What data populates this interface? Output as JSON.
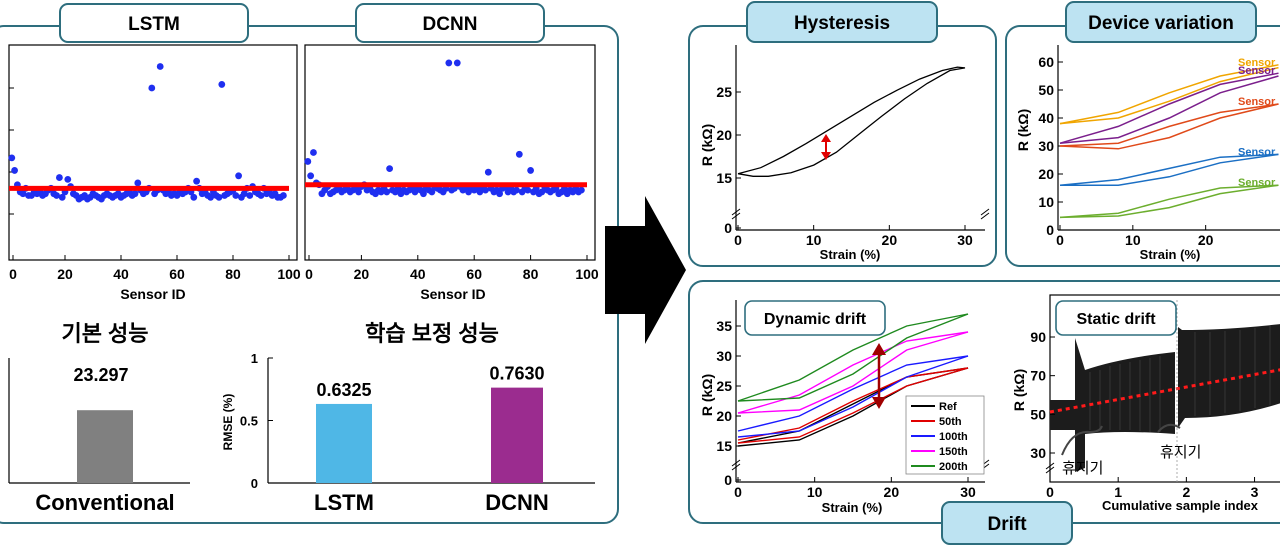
{
  "colors": {
    "panel_border": "#2e6e7e",
    "tab_fill": "#bde3f2",
    "scatter_dot": "#1f2ff0",
    "red_line": "#ff0000",
    "bar_conventional": "#808080",
    "bar_lstm": "#4fb7e6",
    "bar_dcnn": "#9b2c8f",
    "black": "#000000"
  },
  "left_panel": {
    "tabs": [
      "LSTM",
      "DCNN"
    ],
    "scatter_xlabel": "Sensor ID",
    "scatter_xticks": [
      "0",
      "20",
      "40",
      "60",
      "80",
      "100"
    ],
    "lstm_points": [
      [
        1,
        57
      ],
      [
        2,
        50
      ],
      [
        3,
        42
      ],
      [
        4,
        38
      ],
      [
        5,
        37
      ],
      [
        6,
        40
      ],
      [
        7,
        36
      ],
      [
        8,
        36
      ],
      [
        9,
        38
      ],
      [
        10,
        37
      ],
      [
        11,
        38
      ],
      [
        12,
        36
      ],
      [
        13,
        37
      ],
      [
        14,
        39
      ],
      [
        15,
        40
      ],
      [
        16,
        37
      ],
      [
        17,
        36
      ],
      [
        18,
        46
      ],
      [
        19,
        35
      ],
      [
        20,
        38
      ],
      [
        21,
        45
      ],
      [
        22,
        41
      ],
      [
        23,
        37
      ],
      [
        24,
        36
      ],
      [
        25,
        34
      ],
      [
        26,
        35
      ],
      [
        27,
        36
      ],
      [
        28,
        34
      ],
      [
        29,
        35
      ],
      [
        30,
        37
      ],
      [
        31,
        36
      ],
      [
        32,
        35
      ],
      [
        33,
        34
      ],
      [
        34,
        36
      ],
      [
        35,
        37
      ],
      [
        36,
        36
      ],
      [
        37,
        35
      ],
      [
        38,
        36
      ],
      [
        39,
        37
      ],
      [
        40,
        35
      ],
      [
        41,
        36
      ],
      [
        42,
        37
      ],
      [
        43,
        38
      ],
      [
        44,
        36
      ],
      [
        45,
        37
      ],
      [
        46,
        43
      ],
      [
        47,
        39
      ],
      [
        48,
        37
      ],
      [
        49,
        38
      ],
      [
        50,
        40
      ],
      [
        51,
        96
      ],
      [
        52,
        37
      ],
      [
        53,
        39
      ],
      [
        54,
        108
      ],
      [
        55,
        39
      ],
      [
        56,
        37
      ],
      [
        57,
        38
      ],
      [
        58,
        36
      ],
      [
        59,
        37
      ],
      [
        60,
        36
      ],
      [
        61,
        38
      ],
      [
        62,
        37
      ],
      [
        63,
        38
      ],
      [
        64,
        40
      ],
      [
        65,
        38
      ],
      [
        66,
        35
      ],
      [
        67,
        44
      ],
      [
        68,
        40
      ],
      [
        69,
        37
      ],
      [
        70,
        38
      ],
      [
        71,
        36
      ],
      [
        72,
        35
      ],
      [
        73,
        38
      ],
      [
        74,
        36
      ],
      [
        75,
        35
      ],
      [
        76,
        98
      ],
      [
        77,
        36
      ],
      [
        78,
        37
      ],
      [
        79,
        38
      ],
      [
        80,
        39
      ],
      [
        81,
        36
      ],
      [
        82,
        47
      ],
      [
        83,
        35
      ],
      [
        84,
        37
      ],
      [
        85,
        40
      ],
      [
        86,
        36
      ],
      [
        87,
        41
      ],
      [
        88,
        38
      ],
      [
        89,
        37
      ],
      [
        90,
        36
      ],
      [
        91,
        40
      ],
      [
        92,
        37
      ],
      [
        93,
        39
      ],
      [
        94,
        36
      ],
      [
        95,
        37
      ],
      [
        96,
        35
      ],
      [
        97,
        35
      ],
      [
        98,
        36
      ]
    ],
    "lstm_line_y": 40,
    "dcnn_points": [
      [
        1,
        55
      ],
      [
        2,
        47
      ],
      [
        3,
        60
      ],
      [
        4,
        43
      ],
      [
        5,
        42
      ],
      [
        6,
        37
      ],
      [
        7,
        39
      ],
      [
        8,
        41
      ],
      [
        9,
        37
      ],
      [
        10,
        38
      ],
      [
        11,
        39
      ],
      [
        12,
        40
      ],
      [
        13,
        38
      ],
      [
        14,
        39
      ],
      [
        15,
        40
      ],
      [
        16,
        38
      ],
      [
        17,
        39
      ],
      [
        18,
        40
      ],
      [
        19,
        38
      ],
      [
        20,
        41
      ],
      [
        21,
        42
      ],
      [
        22,
        39
      ],
      [
        23,
        40
      ],
      [
        24,
        38
      ],
      [
        25,
        37
      ],
      [
        26,
        39
      ],
      [
        27,
        38
      ],
      [
        28,
        40
      ],
      [
        29,
        38
      ],
      [
        30,
        51
      ],
      [
        31,
        39
      ],
      [
        32,
        38
      ],
      [
        33,
        40
      ],
      [
        34,
        37
      ],
      [
        35,
        39
      ],
      [
        36,
        38
      ],
      [
        37,
        39
      ],
      [
        38,
        40
      ],
      [
        39,
        38
      ],
      [
        40,
        41
      ],
      [
        41,
        39
      ],
      [
        42,
        37
      ],
      [
        43,
        40
      ],
      [
        44,
        39
      ],
      [
        45,
        38
      ],
      [
        46,
        41
      ],
      [
        47,
        40
      ],
      [
        48,
        39
      ],
      [
        49,
        38
      ],
      [
        50,
        40
      ],
      [
        51,
        110
      ],
      [
        52,
        39
      ],
      [
        53,
        40
      ],
      [
        54,
        110
      ],
      [
        55,
        41
      ],
      [
        56,
        39
      ],
      [
        57,
        40
      ],
      [
        58,
        38
      ],
      [
        59,
        40
      ],
      [
        60,
        39
      ],
      [
        61,
        41
      ],
      [
        62,
        38
      ],
      [
        63,
        40
      ],
      [
        64,
        39
      ],
      [
        65,
        49
      ],
      [
        66,
        40
      ],
      [
        67,
        38
      ],
      [
        68,
        39
      ],
      [
        69,
        37
      ],
      [
        70,
        40
      ],
      [
        71,
        41
      ],
      [
        72,
        38
      ],
      [
        73,
        40
      ],
      [
        74,
        38
      ],
      [
        75,
        39
      ],
      [
        76,
        59
      ],
      [
        77,
        38
      ],
      [
        78,
        40
      ],
      [
        79,
        39
      ],
      [
        80,
        50
      ],
      [
        81,
        38
      ],
      [
        82,
        40
      ],
      [
        83,
        37
      ],
      [
        84,
        38
      ],
      [
        85,
        41
      ],
      [
        86,
        39
      ],
      [
        87,
        38
      ],
      [
        88,
        39
      ],
      [
        89,
        40
      ],
      [
        90,
        37
      ],
      [
        91,
        38
      ],
      [
        92,
        40
      ],
      [
        93,
        37
      ],
      [
        94,
        39
      ],
      [
        95,
        38
      ],
      [
        96,
        40
      ],
      [
        97,
        38
      ],
      [
        98,
        39
      ]
    ],
    "dcnn_line_y": 42,
    "headings": {
      "basic": "기본 성능",
      "corrected": "학습 보정 성능"
    },
    "bar_left": {
      "category": "Conventional",
      "value": 23.297,
      "label": "23.297",
      "ylim": [
        0,
        40
      ]
    },
    "bar_right": {
      "ylabel": "RMSE (%)",
      "yticks": [
        "0",
        "0.5",
        "1"
      ],
      "ylim": [
        0,
        1
      ],
      "categories": [
        "LSTM",
        "DCNN"
      ],
      "values": [
        0.6325,
        0.763
      ],
      "labels": [
        "0.6325",
        "0.7630"
      ]
    }
  },
  "hysteresis": {
    "tab": "Hysteresis",
    "ylabel": "R (kΩ)",
    "xlabel": "Strain (%)",
    "xticks": [
      "0",
      "10",
      "20",
      "30"
    ],
    "yticks": [
      "0",
      "15",
      "20",
      "25"
    ],
    "loading": [
      [
        0,
        15.5
      ],
      [
        3,
        16.2
      ],
      [
        6,
        17.5
      ],
      [
        9,
        19.0
      ],
      [
        12,
        20.6
      ],
      [
        15,
        22.2
      ],
      [
        18,
        23.8
      ],
      [
        21,
        25.2
      ],
      [
        24,
        26.5
      ],
      [
        27,
        27.5
      ],
      [
        29,
        27.9
      ],
      [
        30,
        27.8
      ]
    ],
    "unloading": [
      [
        30,
        27.8
      ],
      [
        28,
        27.5
      ],
      [
        25,
        26.0
      ],
      [
        22,
        24.2
      ],
      [
        19,
        22.2
      ],
      [
        16,
        20.1
      ],
      [
        13,
        18.0
      ],
      [
        10,
        16.5
      ],
      [
        7,
        15.6
      ],
      [
        4,
        15.2
      ],
      [
        2,
        15.2
      ],
      [
        0,
        15.5
      ]
    ]
  },
  "device_variation": {
    "tab": "Device variation",
    "ylabel": "R (kΩ)",
    "xlabel": "Strain (%)",
    "xticks": [
      "0",
      "10",
      "20"
    ],
    "yticks": [
      "0",
      "10",
      "20",
      "30",
      "40",
      "50",
      "60"
    ],
    "series": [
      {
        "label": "Sensor",
        "color": "#f0a500",
        "lower": [
          [
            0,
            38
          ],
          [
            8,
            40
          ],
          [
            15,
            46
          ],
          [
            22,
            53
          ],
          [
            30,
            58
          ]
        ],
        "upper": [
          [
            0,
            38
          ],
          [
            8,
            42
          ],
          [
            15,
            49
          ],
          [
            22,
            55
          ],
          [
            30,
            59
          ]
        ]
      },
      {
        "label": "Sensor",
        "color": "#7b1f8c",
        "lower": [
          [
            0,
            31
          ],
          [
            8,
            33
          ],
          [
            15,
            40
          ],
          [
            22,
            49
          ],
          [
            30,
            55
          ]
        ],
        "upper": [
          [
            0,
            31
          ],
          [
            8,
            37
          ],
          [
            15,
            45
          ],
          [
            22,
            52
          ],
          [
            30,
            56
          ]
        ]
      },
      {
        "label": "Sensor",
        "color": "#e04a1a",
        "lower": [
          [
            0,
            30
          ],
          [
            8,
            29
          ],
          [
            15,
            33
          ],
          [
            22,
            40
          ],
          [
            30,
            45
          ]
        ],
        "upper": [
          [
            0,
            30
          ],
          [
            8,
            31
          ],
          [
            15,
            37
          ],
          [
            22,
            42
          ],
          [
            30,
            45
          ]
        ]
      },
      {
        "label": "Sensor",
        "color": "#1b6fc4",
        "lower": [
          [
            0,
            16
          ],
          [
            8,
            16
          ],
          [
            15,
            19
          ],
          [
            22,
            24
          ],
          [
            30,
            27
          ]
        ],
        "upper": [
          [
            0,
            16
          ],
          [
            8,
            18
          ],
          [
            15,
            22
          ],
          [
            22,
            26
          ],
          [
            30,
            27
          ]
        ]
      },
      {
        "label": "Sensor",
        "color": "#6cae2e",
        "lower": [
          [
            0,
            4.5
          ],
          [
            8,
            5
          ],
          [
            15,
            8
          ],
          [
            22,
            13
          ],
          [
            30,
            16
          ]
        ],
        "upper": [
          [
            0,
            4.5
          ],
          [
            8,
            6
          ],
          [
            15,
            11
          ],
          [
            22,
            15
          ],
          [
            30,
            16
          ]
        ]
      }
    ]
  },
  "dynamic_drift": {
    "label": "Dynamic drift",
    "ylabel": "R (kΩ)",
    "xlabel": "Strain (%)",
    "xticks": [
      "0",
      "10",
      "20",
      "30"
    ],
    "yticks": [
      "0",
      "15",
      "20",
      "25",
      "30",
      "35"
    ],
    "legend": [
      "Ref",
      "50th",
      "100th",
      "150th",
      "200th"
    ],
    "series": [
      {
        "name": "Ref",
        "color": "#000000",
        "lower": [
          [
            0,
            15
          ],
          [
            8,
            16
          ],
          [
            15,
            20
          ],
          [
            22,
            25
          ],
          [
            30,
            28
          ]
        ],
        "upper": [
          [
            0,
            15.5
          ],
          [
            8,
            17.5
          ],
          [
            15,
            22
          ],
          [
            22,
            26.5
          ],
          [
            30,
            28
          ]
        ]
      },
      {
        "name": "50th",
        "color": "#e00000",
        "lower": [
          [
            0,
            15.5
          ],
          [
            8,
            16.5
          ],
          [
            15,
            20.5
          ],
          [
            22,
            25
          ],
          [
            30,
            28
          ]
        ],
        "upper": [
          [
            0,
            16
          ],
          [
            8,
            18
          ],
          [
            15,
            22.5
          ],
          [
            22,
            26.5
          ],
          [
            30,
            28
          ]
        ]
      },
      {
        "name": "100th",
        "color": "#1a1aff",
        "lower": [
          [
            0,
            16.5
          ],
          [
            8,
            17.5
          ],
          [
            15,
            21.5
          ],
          [
            22,
            26.5
          ],
          [
            30,
            30
          ]
        ],
        "upper": [
          [
            0,
            17.5
          ],
          [
            8,
            20
          ],
          [
            15,
            24.5
          ],
          [
            22,
            28.5
          ],
          [
            30,
            30
          ]
        ]
      },
      {
        "name": "150th",
        "color": "#ff00ff",
        "lower": [
          [
            0,
            20.5
          ],
          [
            8,
            21
          ],
          [
            15,
            25
          ],
          [
            22,
            31
          ],
          [
            30,
            34
          ]
        ],
        "upper": [
          [
            0,
            20.5
          ],
          [
            8,
            23.5
          ],
          [
            15,
            28.5
          ],
          [
            22,
            32.5
          ],
          [
            30,
            34
          ]
        ]
      },
      {
        "name": "200th",
        "color": "#1f8a1f",
        "lower": [
          [
            0,
            22.5
          ],
          [
            8,
            23
          ],
          [
            15,
            27
          ],
          [
            22,
            33
          ],
          [
            30,
            37
          ]
        ],
        "upper": [
          [
            0,
            22.5
          ],
          [
            8,
            26
          ],
          [
            15,
            31
          ],
          [
            22,
            35
          ],
          [
            30,
            37
          ]
        ]
      }
    ]
  },
  "static_drift": {
    "label": "Static drift",
    "ylabel": "R (kΩ)",
    "xlabel": "Cumulative sample index",
    "xticks": [
      "0",
      "1",
      "2",
      "3"
    ],
    "yticks": [
      "30",
      "50",
      "70",
      "90"
    ],
    "rest_labels": [
      "휴지기",
      "휴지기"
    ]
  },
  "drift_tab": "Drift"
}
